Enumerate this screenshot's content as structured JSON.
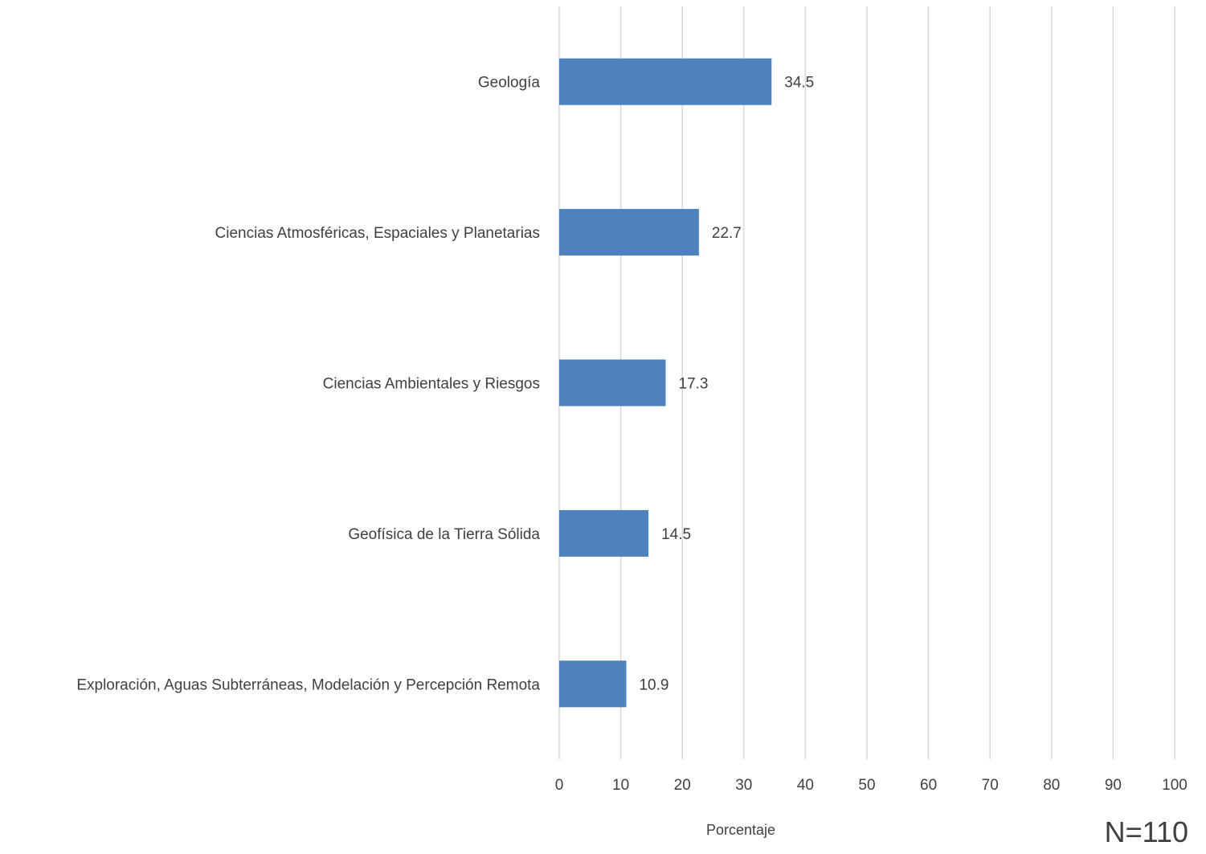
{
  "chart_data": {
    "type": "bar",
    "orientation": "horizontal",
    "categories": [
      "Geología",
      "Ciencias Atmosféricas, Espaciales y Planetarias",
      "Ciencias Ambientales y Riesgos",
      "Geofísica de la Tierra Sólida",
      "Exploración, Aguas Subterráneas, Modelación y Percepción Remota"
    ],
    "values": [
      34.5,
      22.7,
      17.3,
      14.5,
      10.9
    ],
    "data_labels": [
      "34.5",
      "22.7",
      "17.3",
      "14.5",
      "10.9"
    ],
    "title": "",
    "xlabel": "Porcentaje",
    "ylabel": "",
    "xlim": [
      0,
      100
    ],
    "xticks": [
      0,
      10,
      20,
      30,
      40,
      50,
      60,
      70,
      80,
      90,
      100
    ],
    "grid": "vertical",
    "legend": "none",
    "colors": {
      "bar": "#4f81bd",
      "grid": "#d9d9d9",
      "text": "#404040"
    }
  },
  "annotation": {
    "sample_size": "N=110"
  }
}
